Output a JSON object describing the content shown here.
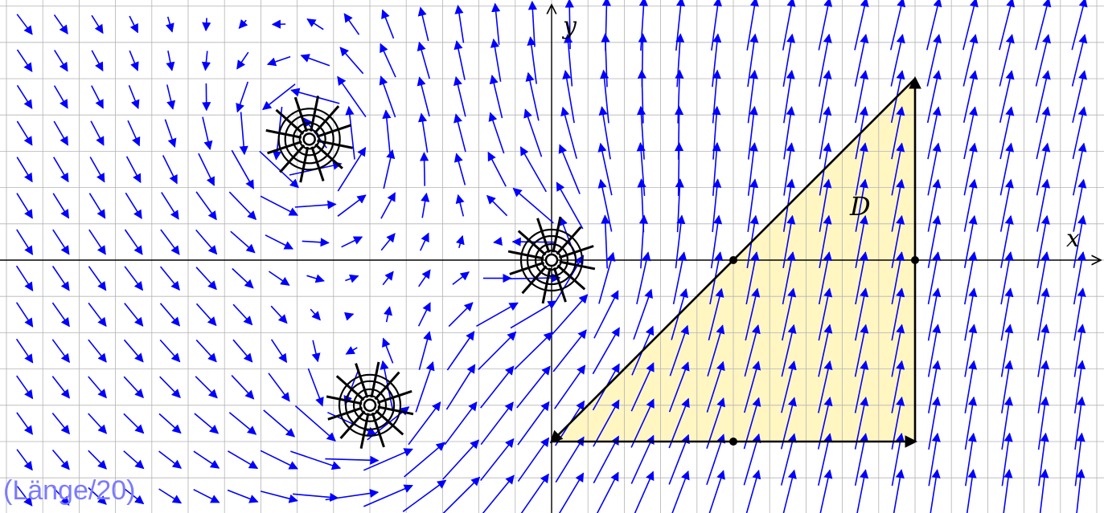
{
  "axes": {
    "x_label": "x",
    "y_label": "y"
  },
  "region": {
    "label": "D",
    "fill_color": "#fff6c2",
    "vertices": [
      [
        0,
        -1
      ],
      [
        2,
        -1
      ],
      [
        2,
        1
      ]
    ],
    "marked_points": [
      [
        1,
        0
      ],
      [
        2,
        0
      ],
      [
        1,
        -1
      ]
    ]
  },
  "caption": "(Länge/20)",
  "colors": {
    "field": "#0000ff",
    "caption": "#7b7bff",
    "grid": "#b3b3b3",
    "axis": "#000000"
  },
  "singularities": [
    {
      "name": "center-singularity",
      "x": 0,
      "y": 0
    },
    {
      "name": "upper-left-singularity",
      "x": -1.3333,
      "y": 0.6667
    },
    {
      "name": "lower-left-singularity",
      "x": -1.0,
      "y": -0.8
    }
  ],
  "view": {
    "x_range": [
      -3.0,
      3.0
    ],
    "y_range": [
      -1.4,
      1.4
    ],
    "grid_step": 0.2
  }
}
